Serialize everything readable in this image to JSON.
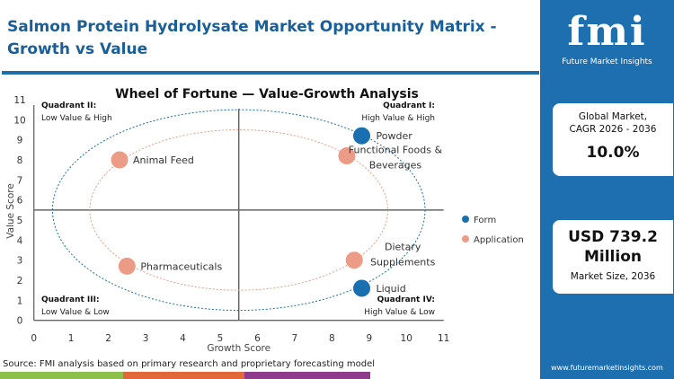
{
  "header": {
    "title": "Salmon Protein Hydrolysate Market Opportunity Matrix - Growth vs Value"
  },
  "sidebar": {
    "logo_text": "fmi",
    "logo_sub": "Future Market Insights",
    "card1": {
      "label1": "Global Market,",
      "label2": "CAGR 2026 - 2036",
      "value": "10.0%"
    },
    "card2": {
      "value1": "USD 739.2",
      "value2": "Million",
      "label": "Market Size, 2036"
    },
    "url": "www.futuremarketinsights.com"
  },
  "footer": {
    "source": "Source: FMI analysis based on primary research and proprietary forecasting model",
    "bar_colors": [
      "#8cc04b",
      "#e2683a",
      "#8e3b8e"
    ]
  },
  "colors": {
    "brand": "#1e6fb0",
    "form": "#1a6fb0",
    "application": "#ec9c86"
  },
  "chart_data": {
    "type": "scatter",
    "title": "Wheel of Fortune — Value-Growth Analysis",
    "xlabel": "Growth Score",
    "ylabel": "Value Score",
    "xlim": [
      0,
      11
    ],
    "ylim": [
      0,
      11
    ],
    "xticks": [
      0,
      1,
      2,
      3,
      4,
      5,
      6,
      7,
      8,
      9,
      10,
      11
    ],
    "yticks": [
      0,
      1,
      2,
      3,
      4,
      5,
      6,
      7,
      8,
      9,
      10,
      11
    ],
    "dividers": {
      "x": 5.5,
      "y": 5.5
    },
    "rings": [
      {
        "series": "Form",
        "cx": 5.5,
        "cy": 5.5,
        "rx": 5,
        "ry": 5
      },
      {
        "series": "Application",
        "cx": 5.5,
        "cy": 5.5,
        "rx": 4,
        "ry": 4
      }
    ],
    "quadrants": [
      {
        "title": "Quadrant II:",
        "subtitle": "Low Value & High",
        "pos": "top-left"
      },
      {
        "title": "Quadrant I:",
        "subtitle": "High Value & High",
        "pos": "top-right"
      },
      {
        "title": "Quadrant III:",
        "subtitle": "Low Value & Low",
        "pos": "bottom-left"
      },
      {
        "title": "Quadrant IV:",
        "subtitle": "High Value & Low",
        "pos": "bottom-right"
      }
    ],
    "legend": {
      "placement": "right",
      "entries": [
        "Form",
        "Application"
      ]
    },
    "series": [
      {
        "name": "Form",
        "points": [
          {
            "label": "Powder",
            "x": 8.8,
            "y": 9.2
          },
          {
            "label": "Liquid",
            "x": 8.8,
            "y": 1.6
          }
        ]
      },
      {
        "name": "Application",
        "points": [
          {
            "label": "Animal Feed",
            "x": 2.3,
            "y": 8.0
          },
          {
            "label": "Functional Foods & Beverages",
            "x": 8.4,
            "y": 8.2
          },
          {
            "label": "Pharmaceuticals",
            "x": 2.5,
            "y": 2.7
          },
          {
            "label": "Dietary Supplements",
            "x": 8.6,
            "y": 3.0
          }
        ]
      }
    ]
  }
}
